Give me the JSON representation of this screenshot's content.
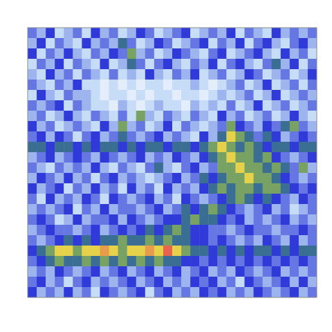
{
  "chart_data": {
    "type": "heatmap",
    "tick_labels": false,
    "color_range": [
      0,
      10
    ],
    "cells": [
      [
        4,
        3,
        5,
        2,
        3,
        4,
        2,
        5,
        3,
        4,
        2,
        3,
        5,
        4,
        2,
        3,
        4,
        5,
        2,
        3,
        4,
        3,
        5,
        2,
        4,
        3,
        2,
        5,
        3,
        4,
        3,
        4
      ],
      [
        3,
        5,
        2,
        4,
        3,
        2,
        5,
        3,
        4,
        3,
        6,
        4,
        2,
        3,
        5,
        4,
        2,
        3,
        4,
        5,
        2,
        4,
        3,
        5,
        2,
        4,
        5,
        3,
        2,
        4,
        5,
        3
      ],
      [
        5,
        2,
        4,
        3,
        5,
        3,
        2,
        4,
        3,
        5,
        4,
        7,
        3,
        4,
        2,
        3,
        5,
        4,
        3,
        2,
        4,
        5,
        2,
        3,
        4,
        5,
        3,
        2,
        5,
        3,
        4,
        2
      ],
      [
        2,
        4,
        3,
        5,
        2,
        4,
        3,
        2,
        5,
        2,
        3,
        6,
        4,
        2,
        4,
        5,
        3,
        2,
        4,
        3,
        5,
        2,
        4,
        5,
        3,
        2,
        4,
        6,
        3,
        5,
        2,
        4
      ],
      [
        3,
        2,
        5,
        3,
        4,
        2,
        4,
        3,
        2,
        4,
        2,
        3,
        2,
        5,
        3,
        2,
        4,
        3,
        5,
        2,
        3,
        4,
        2,
        3,
        5,
        4,
        2,
        3,
        4,
        2,
        3,
        5
      ],
      [
        4,
        3,
        2,
        4,
        3,
        5,
        2,
        2,
        1,
        2,
        1,
        2,
        1,
        2,
        2,
        1,
        2,
        2,
        3,
        2,
        1,
        2,
        3,
        4,
        2,
        3,
        5,
        2,
        3,
        4,
        2,
        4
      ],
      [
        2,
        5,
        3,
        2,
        4,
        3,
        3,
        2,
        1,
        2,
        2,
        1,
        2,
        1,
        2,
        2,
        1,
        2,
        2,
        1,
        2,
        3,
        2,
        3,
        4,
        2,
        3,
        5,
        2,
        3,
        4,
        3
      ],
      [
        4,
        3,
        4,
        5,
        2,
        4,
        3,
        2,
        2,
        1,
        3,
        2,
        1,
        2,
        3,
        2,
        2,
        1,
        3,
        2,
        3,
        2,
        4,
        2,
        3,
        5,
        2,
        3,
        4,
        2,
        3,
        4
      ],
      [
        3,
        4,
        2,
        3,
        5,
        3,
        2,
        4,
        3,
        2,
        4,
        2,
        7,
        3,
        2,
        4,
        3,
        2,
        4,
        3,
        2,
        5,
        3,
        4,
        2,
        3,
        4,
        2,
        3,
        5,
        3,
        2
      ],
      [
        5,
        3,
        4,
        2,
        3,
        4,
        3,
        2,
        5,
        3,
        7,
        3,
        4,
        2,
        3,
        5,
        2,
        4,
        3,
        2,
        3,
        4,
        7,
        5,
        4,
        3,
        5,
        4,
        6,
        7,
        4,
        3
      ],
      [
        4,
        5,
        3,
        5,
        4,
        2,
        4,
        5,
        3,
        4,
        6,
        4,
        3,
        4,
        5,
        3,
        4,
        3,
        2,
        5,
        3,
        6,
        8,
        7,
        6,
        4,
        6,
        5,
        3,
        4,
        5,
        4
      ],
      [
        6,
        6,
        5,
        6,
        6,
        5,
        6,
        5,
        6,
        6,
        5,
        6,
        5,
        6,
        6,
        5,
        6,
        6,
        5,
        6,
        7,
        8,
        7,
        6,
        7,
        6,
        5,
        6,
        6,
        5,
        6,
        6
      ],
      [
        3,
        4,
        5,
        3,
        4,
        5,
        4,
        3,
        5,
        4,
        3,
        4,
        5,
        3,
        4,
        3,
        5,
        4,
        3,
        5,
        6,
        7,
        8,
        7,
        7,
        6,
        7,
        5,
        4,
        3,
        4,
        5
      ],
      [
        4,
        3,
        2,
        4,
        3,
        4,
        3,
        5,
        3,
        2,
        4,
        3,
        2,
        4,
        6,
        3,
        2,
        4,
        5,
        3,
        4,
        7,
        7,
        8,
        7,
        7,
        6,
        7,
        6,
        4,
        7,
        3
      ],
      [
        3,
        5,
        4,
        3,
        5,
        3,
        4,
        2,
        4,
        5,
        3,
        4,
        3,
        2,
        3,
        4,
        5,
        3,
        4,
        6,
        5,
        6,
        7,
        7,
        8,
        7,
        7,
        6,
        5,
        4,
        3,
        4
      ],
      [
        5,
        3,
        4,
        5,
        2,
        4,
        3,
        5,
        3,
        4,
        2,
        5,
        3,
        4,
        2,
        5,
        3,
        4,
        3,
        5,
        6,
        7,
        6,
        7,
        7,
        6,
        7,
        7,
        6,
        5,
        4,
        5
      ],
      [
        4,
        2,
        5,
        3,
        4,
        3,
        5,
        4,
        2,
        5,
        4,
        3,
        4,
        5,
        3,
        4,
        2,
        5,
        4,
        3,
        4,
        5,
        6,
        7,
        6,
        5,
        6,
        5,
        4,
        3,
        5,
        4
      ],
      [
        3,
        4,
        3,
        4,
        5,
        2,
        4,
        3,
        5,
        3,
        4,
        4,
        3,
        4,
        5,
        3,
        4,
        6,
        5,
        6,
        7,
        6,
        5,
        4,
        3,
        4,
        5,
        3,
        4,
        2,
        3,
        4
      ],
      [
        4,
        5,
        4,
        2,
        3,
        5,
        3,
        4,
        4,
        5,
        3,
        5,
        4,
        3,
        4,
        5,
        5,
        6,
        7,
        6,
        6,
        5,
        4,
        5,
        3,
        4,
        3,
        4,
        5,
        3,
        4,
        3
      ],
      [
        3,
        4,
        5,
        4,
        4,
        3,
        4,
        5,
        3,
        4,
        5,
        4,
        5,
        6,
        5,
        6,
        7,
        6,
        5,
        5,
        4,
        4,
        3,
        4,
        5,
        4,
        4,
        3,
        4,
        4,
        5,
        4
      ],
      [
        4,
        3,
        4,
        5,
        6,
        5,
        6,
        5,
        6,
        6,
        7,
        6,
        6,
        7,
        6,
        7,
        6,
        6,
        5,
        5,
        4,
        5,
        4,
        3,
        4,
        3,
        5,
        4,
        3,
        5,
        3,
        4
      ],
      [
        5,
        6,
        7,
        8,
        8,
        7,
        8,
        8,
        9,
        8,
        7,
        8,
        8,
        9,
        8,
        10,
        8,
        7,
        6,
        6,
        5,
        6,
        5,
        6,
        5,
        6,
        6,
        5,
        6,
        5,
        6,
        6
      ],
      [
        4,
        5,
        6,
        7,
        6,
        6,
        7,
        6,
        7,
        6,
        7,
        6,
        7,
        6,
        7,
        6,
        6,
        5,
        5,
        4,
        5,
        4,
        5,
        4,
        5,
        4,
        5,
        4,
        5,
        4,
        5,
        4
      ],
      [
        3,
        4,
        3,
        5,
        4,
        3,
        4,
        5,
        3,
        4,
        5,
        3,
        4,
        5,
        3,
        4,
        5,
        3,
        4,
        5,
        3,
        4,
        3,
        5,
        4,
        3,
        4,
        5,
        3,
        4,
        3,
        4
      ],
      [
        4,
        5,
        3,
        4,
        2,
        4,
        5,
        3,
        4,
        3,
        4,
        5,
        3,
        4,
        5,
        3,
        4,
        3,
        5,
        4,
        5,
        3,
        4,
        2,
        5,
        4,
        3,
        4,
        5,
        3,
        5,
        3
      ],
      [
        5,
        3,
        4,
        3,
        5,
        3,
        4,
        2,
        5,
        4,
        3,
        4,
        5,
        2,
        4,
        5,
        3,
        4,
        3,
        5,
        4,
        5,
        3,
        4,
        3,
        5,
        4,
        3,
        4,
        5,
        3,
        4
      ]
    ]
  }
}
